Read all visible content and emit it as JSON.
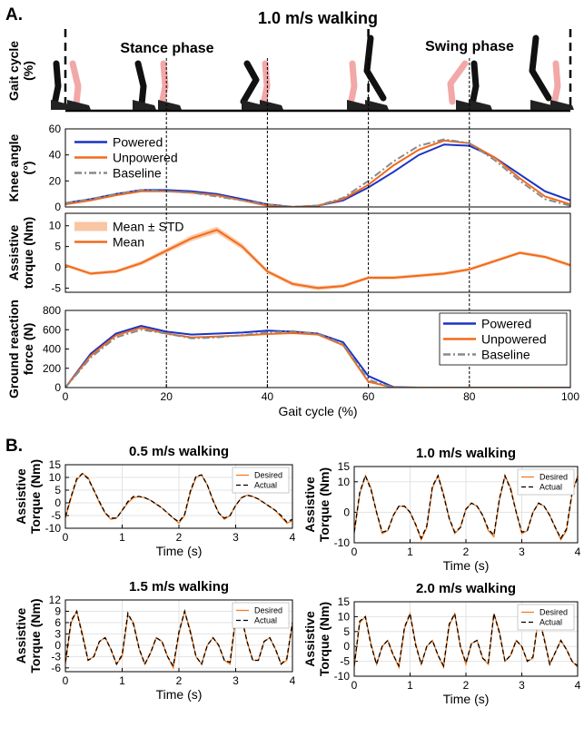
{
  "chart_data": [
    {
      "type": "line",
      "panel": "A.",
      "title": "1.0 m/s walking",
      "strip_label": [
        "Gait cycle",
        "(%)"
      ],
      "phase_labels": [
        "Stance phase",
        "Swing phase"
      ],
      "phase_lines": [
        0,
        60,
        100
      ],
      "vlines": [
        20,
        40,
        60,
        80
      ],
      "ylabel": [
        "Knee angle",
        "(°)"
      ],
      "ylim": [
        0,
        60
      ],
      "yticks": [
        0,
        20,
        40,
        60
      ],
      "xlim": [
        0,
        100
      ],
      "legend": "upper left",
      "grid": false,
      "x": [
        0,
        5,
        10,
        15,
        20,
        25,
        30,
        35,
        40,
        45,
        50,
        55,
        60,
        65,
        70,
        75,
        80,
        85,
        90,
        95,
        100
      ],
      "series": [
        {
          "name": "Powered",
          "color": "#1a33c4",
          "linestyle": "solid",
          "values": [
            3,
            6,
            10,
            13,
            13,
            12,
            10,
            6,
            2,
            0,
            1,
            5,
            15,
            27,
            40,
            48,
            47,
            38,
            25,
            12,
            5
          ]
        },
        {
          "name": "Unpowered",
          "color": "#f26a1b",
          "linestyle": "solid",
          "values": [
            2,
            5,
            9,
            12,
            12,
            11,
            9,
            5,
            1,
            0,
            1,
            6,
            17,
            32,
            44,
            51,
            49,
            38,
            22,
            8,
            2
          ]
        },
        {
          "name": "Baseline",
          "color": "#8a8a8a",
          "linestyle": "dashdot",
          "values": [
            3,
            6,
            10,
            13,
            12,
            11,
            8,
            5,
            2,
            0,
            1,
            7,
            20,
            35,
            47,
            52,
            49,
            36,
            20,
            6,
            1
          ]
        }
      ]
    },
    {
      "type": "band",
      "ylabel": [
        "Assistive",
        "torque (Nm)"
      ],
      "ylim": [
        -6,
        13
      ],
      "yticks": [
        -5,
        0,
        5,
        10
      ],
      "xlim": [
        0,
        100
      ],
      "legend": "upper left",
      "grid": false,
      "x": [
        0,
        5,
        10,
        15,
        20,
        25,
        30,
        35,
        40,
        45,
        50,
        55,
        60,
        65,
        70,
        75,
        80,
        85,
        90,
        95,
        100
      ],
      "series": [
        {
          "name": "Mean ± STD",
          "color": "#f9c6a2",
          "values": [
            0.5,
            -1.5,
            -1,
            1,
            4,
            7,
            9,
            5,
            -1,
            -4,
            -5,
            -4.5,
            -2.5,
            -2.5,
            -2,
            -1.5,
            -0.5,
            1.5,
            3.5,
            2.5,
            0.5
          ],
          "std": [
            0.4,
            0.4,
            0.4,
            0.5,
            0.6,
            0.7,
            0.8,
            0.7,
            0.5,
            0.5,
            0.5,
            0.4,
            0.4,
            0.4,
            0.4,
            0.4,
            0.4,
            0.4,
            0.4,
            0.4,
            0.4
          ]
        },
        {
          "name": "Mean",
          "color": "#f26a1b",
          "values": [
            0.5,
            -1.5,
            -1,
            1,
            4,
            7,
            9,
            5,
            -1,
            -4,
            -5,
            -4.5,
            -2.5,
            -2.5,
            -2,
            -1.5,
            -0.5,
            1.5,
            3.5,
            2.5,
            0.5
          ]
        }
      ]
    },
    {
      "type": "line",
      "ylabel": [
        "Ground reaction",
        "force (N)"
      ],
      "xlabel": "Gait cycle (%)",
      "ylim": [
        0,
        800
      ],
      "yticks": [
        0,
        200,
        400,
        600,
        800
      ],
      "xlim": [
        0,
        100
      ],
      "xticks": [
        0,
        20,
        40,
        60,
        80,
        100
      ],
      "legend": "upper right",
      "grid": false,
      "x": [
        0,
        5,
        10,
        15,
        20,
        25,
        30,
        35,
        40,
        45,
        50,
        55,
        60,
        65,
        70,
        75,
        80,
        85,
        90,
        95,
        100
      ],
      "series": [
        {
          "name": "Powered",
          "color": "#1a33c4",
          "linestyle": "solid",
          "values": [
            0,
            350,
            560,
            640,
            580,
            550,
            560,
            570,
            590,
            580,
            560,
            470,
            120,
            5,
            0,
            0,
            0,
            0,
            0,
            0,
            0
          ]
        },
        {
          "name": "Unpowered",
          "color": "#f26a1b",
          "linestyle": "solid",
          "values": [
            0,
            330,
            540,
            620,
            560,
            520,
            530,
            540,
            555,
            565,
            550,
            440,
            60,
            0,
            0,
            0,
            0,
            0,
            0,
            0,
            0
          ]
        },
        {
          "name": "Baseline",
          "color": "#8a8a8a",
          "linestyle": "dashdot",
          "values": [
            0,
            310,
            520,
            600,
            560,
            510,
            520,
            545,
            570,
            585,
            560,
            450,
            80,
            0,
            0,
            0,
            0,
            0,
            0,
            0,
            0
          ]
        }
      ]
    },
    {
      "type": "line",
      "panel": "B.",
      "title": "0.5 m/s walking",
      "ylabel": [
        "Assistive",
        "Torque (Nm)"
      ],
      "xlabel": "Time (s)",
      "ylim": [
        -10,
        15
      ],
      "yticks": [
        -10,
        -5,
        0,
        5,
        10,
        15
      ],
      "xlim": [
        0,
        4
      ],
      "xticks": [
        0,
        1,
        2,
        3,
        4
      ],
      "legend": "upper right",
      "grid": true,
      "x": [
        0,
        0.1,
        0.2,
        0.3,
        0.4,
        0.5,
        0.6,
        0.7,
        0.8,
        0.9,
        1,
        1.1,
        1.2,
        1.3,
        1.4,
        1.5,
        1.6,
        1.7,
        1.8,
        1.9,
        2,
        2.1,
        2.2,
        2.3,
        2.4,
        2.5,
        2.6,
        2.7,
        2.8,
        2.9,
        3,
        3.1,
        3.2,
        3.3,
        3.4,
        3.5,
        3.6,
        3.7,
        3.8,
        3.9,
        4
      ],
      "series": [
        {
          "name": "Desired",
          "color": "#f47b20",
          "linestyle": "solid",
          "values": [
            -6,
            2,
            9,
            11.5,
            10,
            5,
            0,
            -4,
            -6.5,
            -6,
            -3,
            0,
            2,
            2.5,
            2,
            1,
            -0.5,
            -2,
            -4,
            -6,
            -8,
            -5,
            4,
            10,
            11,
            7,
            1,
            -4,
            -6.5,
            -5,
            -1,
            2,
            3,
            2.5,
            1.5,
            0,
            -1.5,
            -3,
            -5.5,
            -8,
            -7
          ]
        },
        {
          "name": "Actual",
          "color": "#000000",
          "linestyle": "dashed",
          "values": [
            -5.5,
            2.5,
            9.5,
            11.5,
            9.5,
            5,
            0.5,
            -4,
            -6,
            -6,
            -3,
            0.5,
            2.5,
            2.5,
            2,
            1,
            -0.5,
            -2,
            -4,
            -6,
            -7.5,
            -4.5,
            4.5,
            10.5,
            11,
            7,
            1,
            -4,
            -6,
            -5,
            -1,
            2,
            3,
            2.5,
            1.5,
            0,
            -1.5,
            -3,
            -5,
            -7.5,
            -6.5
          ]
        }
      ]
    },
    {
      "type": "line",
      "title": "1.0 m/s walking",
      "ylabel": [
        "Assistive",
        "Torque (Nm)"
      ],
      "xlabel": "Time (s)",
      "ylim": [
        -10,
        15
      ],
      "yticks": [
        -10,
        0,
        10,
        15
      ],
      "xlim": [
        0,
        4
      ],
      "xticks": [
        0,
        1,
        2,
        3,
        4
      ],
      "legend": "upper right",
      "grid": true,
      "x": [
        0,
        0.1,
        0.2,
        0.3,
        0.4,
        0.5,
        0.6,
        0.7,
        0.8,
        0.9,
        1,
        1.1,
        1.2,
        1.3,
        1.4,
        1.5,
        1.6,
        1.7,
        1.8,
        1.9,
        2,
        2.1,
        2.2,
        2.3,
        2.4,
        2.5,
        2.6,
        2.7,
        2.8,
        2.9,
        3,
        3.1,
        3.2,
        3.3,
        3.4,
        3.5,
        3.6,
        3.7,
        3.8,
        3.9,
        4
      ],
      "series": [
        {
          "name": "Desired",
          "color": "#f47b20",
          "linestyle": "solid",
          "values": [
            -7,
            6,
            12,
            8,
            0,
            -7,
            -6,
            -1,
            2,
            2,
            0,
            -4,
            -9,
            -5,
            8,
            12,
            6,
            -2,
            -7,
            -5,
            1,
            3,
            2,
            -1,
            -6,
            -8,
            4,
            12,
            8,
            0,
            -7,
            -6,
            0,
            3,
            2,
            -1,
            -5,
            -9,
            -6,
            6,
            12
          ]
        },
        {
          "name": "Actual",
          "color": "#000000",
          "linestyle": "dashed",
          "values": [
            -6.5,
            6.5,
            12,
            7.5,
            0,
            -6.5,
            -6,
            -1,
            2,
            2,
            0,
            -4,
            -8.5,
            -4.5,
            8.5,
            12,
            5.5,
            -2,
            -6.5,
            -5,
            1,
            3,
            2,
            -1,
            -5.5,
            -7.5,
            4.5,
            12,
            7.5,
            0,
            -6.5,
            -6,
            0,
            3,
            2,
            -1,
            -5,
            -8.5,
            -5.5,
            6.5,
            11.5
          ]
        }
      ]
    },
    {
      "type": "line",
      "title": "1.5 m/s walking",
      "ylabel": [
        "Assistive",
        "Torque (Nm)"
      ],
      "xlabel": "Time (s)",
      "ylim": [
        -7,
        12
      ],
      "yticks": [
        -6,
        -3,
        0,
        3,
        6,
        9,
        12
      ],
      "xlim": [
        0,
        4
      ],
      "xticks": [
        0,
        1,
        2,
        3,
        4
      ],
      "legend": "upper right",
      "grid": true,
      "x": [
        0,
        0.1,
        0.2,
        0.3,
        0.4,
        0.5,
        0.6,
        0.7,
        0.8,
        0.9,
        1,
        1.1,
        1.2,
        1.3,
        1.4,
        1.5,
        1.6,
        1.7,
        1.8,
        1.9,
        2,
        2.1,
        2.2,
        2.3,
        2.4,
        2.5,
        2.6,
        2.7,
        2.8,
        2.9,
        3,
        3.1,
        3.2,
        3.3,
        3.4,
        3.5,
        3.6,
        3.7,
        3.8,
        3.9,
        4
      ],
      "series": [
        {
          "name": "Desired",
          "color": "#f47b20",
          "linestyle": "solid",
          "values": [
            -5,
            6,
            9,
            3,
            -4,
            -3,
            1,
            2,
            -1,
            -5,
            -3,
            8,
            6,
            -1,
            -5,
            -2,
            2,
            1,
            -3,
            -6,
            3,
            9,
            4,
            -3,
            -5,
            0,
            2,
            0,
            -4,
            -5,
            7,
            8,
            1,
            -4,
            -4,
            1,
            2,
            -1,
            -5,
            -4,
            6
          ]
        },
        {
          "name": "Actual",
          "color": "#000000",
          "linestyle": "dashed",
          "values": [
            -4.5,
            6.5,
            9,
            2.5,
            -4,
            -3,
            1,
            2,
            -1,
            -5,
            -2.5,
            8.5,
            5.5,
            -1,
            -5,
            -2,
            2,
            1,
            -3,
            -5.5,
            3.5,
            9,
            3.5,
            -3,
            -5,
            0,
            2,
            0,
            -4,
            -4.5,
            7.5,
            7.5,
            1,
            -4,
            -4,
            1,
            2,
            -1,
            -5,
            -3.5,
            6
          ]
        }
      ]
    },
    {
      "type": "line",
      "title": "2.0 m/s walking",
      "ylabel": [
        "Assistive",
        "Torque (Nm)"
      ],
      "xlabel": "Time (s)",
      "ylim": [
        -10,
        15
      ],
      "yticks": [
        -10,
        -5,
        0,
        5,
        10,
        15
      ],
      "xlim": [
        0,
        4
      ],
      "xticks": [
        0,
        1,
        2,
        3,
        4
      ],
      "legend": "upper right",
      "grid": true,
      "x": [
        0,
        0.1,
        0.2,
        0.3,
        0.4,
        0.5,
        0.6,
        0.7,
        0.8,
        0.9,
        1,
        1.1,
        1.2,
        1.3,
        1.4,
        1.5,
        1.6,
        1.7,
        1.8,
        1.9,
        2,
        2.1,
        2.2,
        2.3,
        2.4,
        2.5,
        2.6,
        2.7,
        2.8,
        2.9,
        3,
        3.1,
        3.2,
        3.3,
        3.4,
        3.5,
        3.6,
        3.7,
        3.8,
        3.9,
        4
      ],
      "series": [
        {
          "name": "Desired",
          "color": "#f47b20",
          "linestyle": "solid",
          "values": [
            -7,
            8,
            10,
            1,
            -6,
            0,
            2,
            -3,
            -7,
            6,
            11,
            1,
            -6,
            0,
            2,
            -3,
            -7,
            7,
            11,
            0,
            -6,
            1,
            2,
            -4,
            -6,
            11,
            5,
            -5,
            -3,
            2,
            0,
            -5,
            -4,
            10,
            3,
            -6,
            -2,
            2,
            -1,
            -5,
            -7
          ]
        },
        {
          "name": "Actual",
          "color": "#000000",
          "linestyle": "dashed",
          "values": [
            -6.5,
            8.5,
            10,
            0.5,
            -6,
            0,
            2,
            -3,
            -6.5,
            6.5,
            11,
            0.5,
            -6,
            0,
            2,
            -3,
            -6.5,
            7.5,
            11,
            0,
            -5.5,
            1,
            2,
            -4,
            -5.5,
            11,
            4.5,
            -5,
            -3,
            2,
            0,
            -5,
            -3.5,
            10,
            2.5,
            -6,
            -2,
            2,
            -1,
            -5,
            -6.5
          ]
        }
      ]
    }
  ]
}
